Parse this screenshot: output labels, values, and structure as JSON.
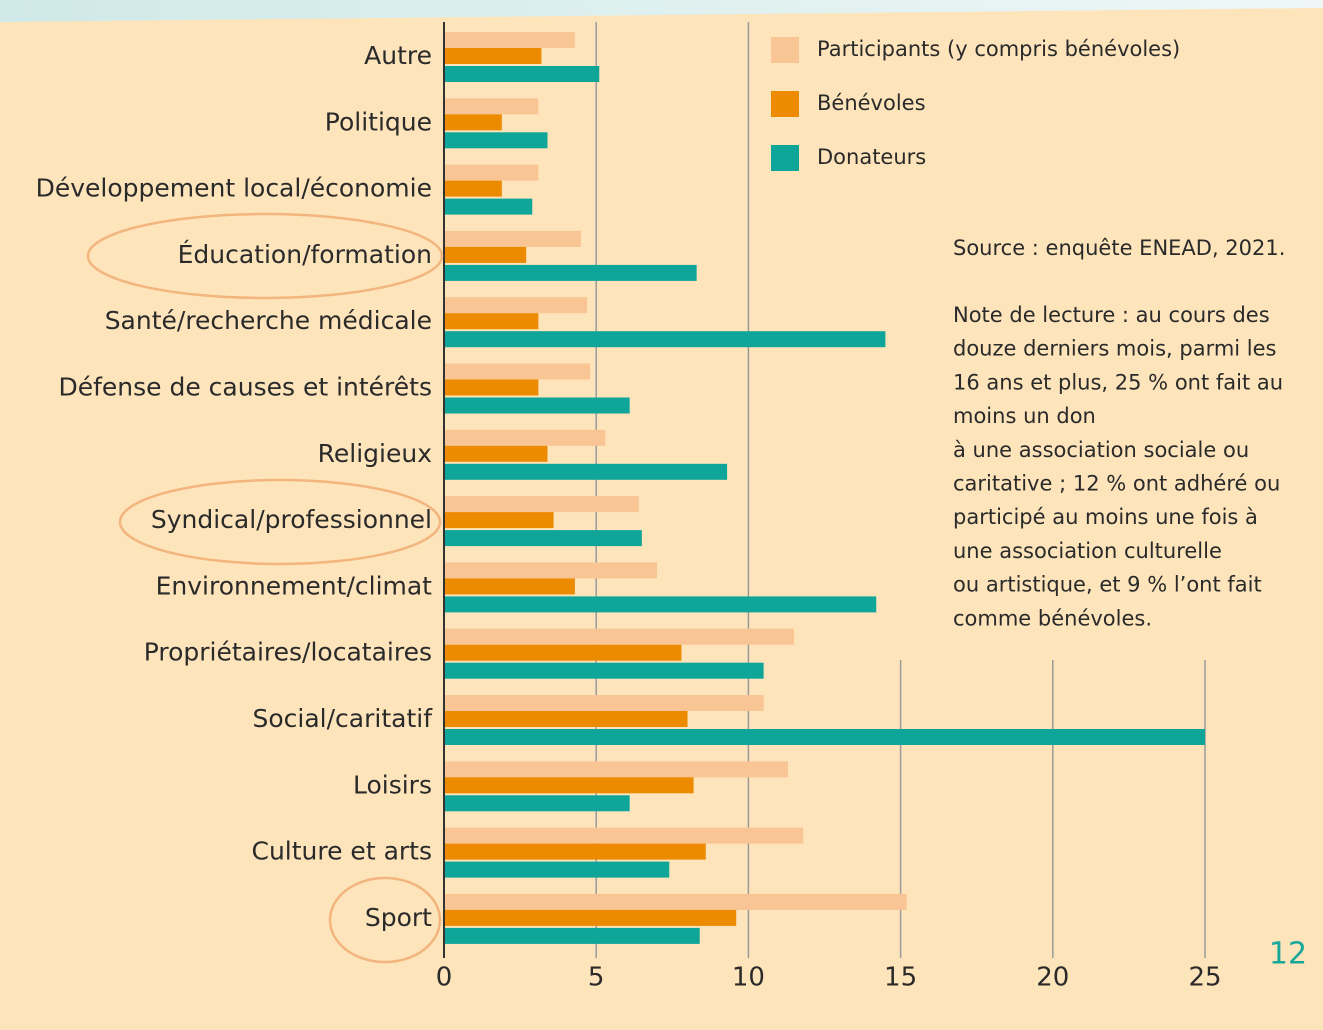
{
  "chart_data": {
    "type": "barh",
    "categories": [
      "Autre",
      "Politique",
      "Développement local/économie",
      "Éducation/formation",
      "Santé/recherche médicale",
      "Défense de causes et intérêts",
      "Religieux",
      "Syndical/professionnel",
      "Environnement/climat",
      "Propriétaires/locataires",
      "Social/caritatif",
      "Loisirs",
      "Culture et arts",
      "Sport"
    ],
    "series": [
      {
        "name": "Participants (y compris bénévoles)",
        "color": "#f9c595",
        "values": [
          4.3,
          3.1,
          3.1,
          4.5,
          4.7,
          4.8,
          5.3,
          6.4,
          7.0,
          11.5,
          10.5,
          11.3,
          11.8,
          15.2
        ]
      },
      {
        "name": "Bénévoles",
        "color": "#ec8b00",
        "values": [
          3.2,
          1.9,
          1.9,
          2.7,
          3.1,
          3.1,
          3.4,
          3.6,
          4.3,
          7.8,
          8.0,
          8.2,
          8.6,
          9.6
        ]
      },
      {
        "name": "Donateurs",
        "color": "#0fa598",
        "values": [
          5.1,
          3.4,
          2.9,
          8.3,
          14.5,
          6.1,
          9.3,
          6.5,
          14.2,
          10.5,
          25,
          6.1,
          7.4,
          8.4
        ]
      }
    ],
    "xlim": [
      0,
      25
    ],
    "xticks": [
      0,
      5,
      10,
      15,
      20,
      25
    ],
    "grid": true,
    "source": "Source : enquête ENEAD, 2021.",
    "note": [
      "Note de lecture : au cours des",
      "douze derniers mois, parmi les",
      "16 ans et plus, 25 % ont fait au",
      "moins un don",
      "à une association sociale ou",
      "caritative ; 12 % ont adhéré ou",
      "participé au moins une fois à",
      "une association culturelle",
      "ou artistique, et 9 % l’ont fait",
      "comme bénévoles."
    ],
    "page_number": "12"
  }
}
